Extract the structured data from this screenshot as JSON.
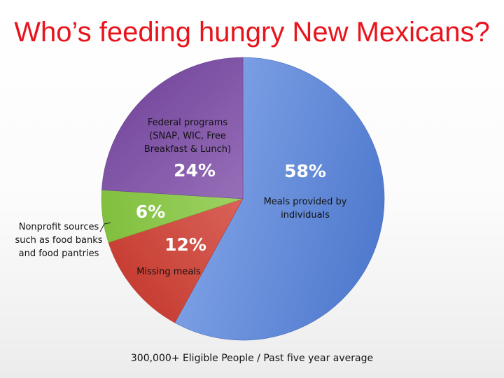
{
  "title": "Who’s feeding hungry New Mexicans?",
  "footer": "300,000+ Eligible People / Past five year average",
  "colors": {
    "title": "#e8141c",
    "individuals": "#5b8bea",
    "missing": "#e2473a",
    "nonprofit": "#93d946",
    "federal": "#8a56b6"
  },
  "chart_data": {
    "type": "pie",
    "title": "Who’s feeding hungry New Mexicans?",
    "start_angle_deg": 0,
    "direction": "clockwise",
    "slices": [
      {
        "key": "individuals",
        "percent": 58,
        "label": "58%",
        "description": [
          "Meals provided by",
          "individuals"
        ],
        "color": "#5b8bea"
      },
      {
        "key": "missing",
        "percent": 12,
        "label": "12%",
        "description": [
          "Missing meals"
        ],
        "color": "#e2473a"
      },
      {
        "key": "nonprofit",
        "percent": 6,
        "label": "6%",
        "description": [
          "Nonprofit sources",
          "such as food banks",
          "and food pantries"
        ],
        "color": "#93d946"
      },
      {
        "key": "federal",
        "percent": 24,
        "label": "24%",
        "description": [
          "Federal programs",
          "(SNAP, WIC, Free",
          "Breakfast & Lunch)"
        ],
        "color": "#8a56b6"
      }
    ],
    "annotation": "300,000+ Eligible People / Past five year average"
  }
}
